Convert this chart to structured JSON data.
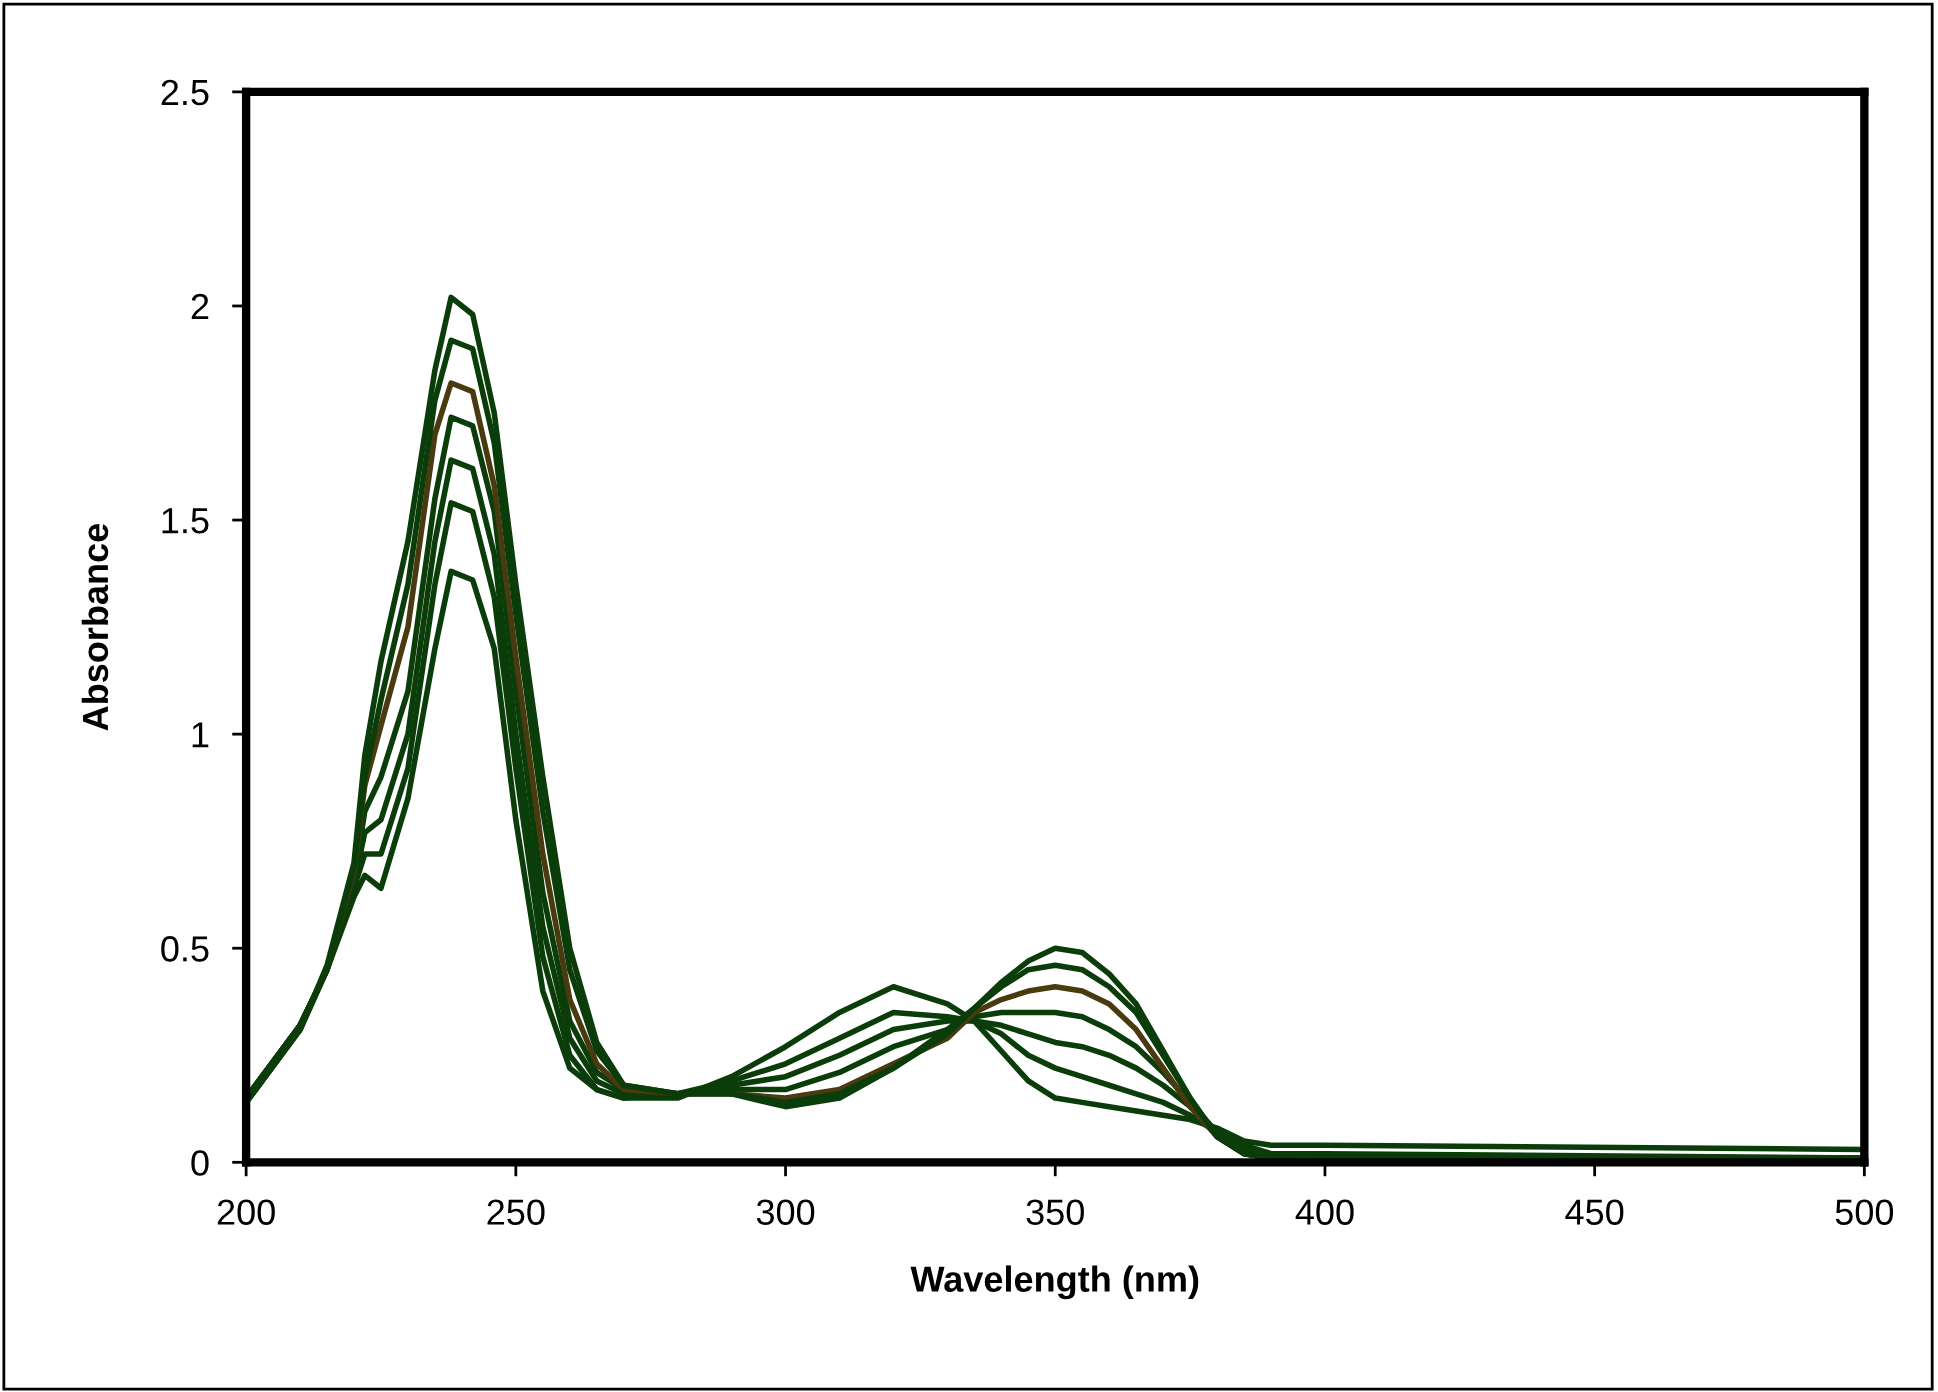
{
  "chart_data": {
    "type": "line",
    "xlabel": "Wavelength (nm)",
    "ylabel": "Absorbance",
    "x": [
      200,
      210,
      215,
      220,
      222,
      225,
      230,
      235,
      238,
      242,
      246,
      250,
      255,
      260,
      265,
      270,
      280,
      290,
      300,
      310,
      320,
      330,
      335,
      340,
      345,
      350,
      355,
      360,
      365,
      370,
      375,
      380,
      385,
      390,
      400,
      500
    ],
    "series": [
      {
        "color": "#0b3d0b",
        "values": [
          0.15,
          0.32,
          0.45,
          0.62,
          0.67,
          0.64,
          0.85,
          1.2,
          1.38,
          1.36,
          1.2,
          0.8,
          0.4,
          0.22,
          0.17,
          0.15,
          0.15,
          0.2,
          0.27,
          0.35,
          0.41,
          0.37,
          0.33,
          0.26,
          0.19,
          0.15,
          0.14,
          0.13,
          0.12,
          0.11,
          0.1,
          0.08,
          0.05,
          0.04,
          0.04,
          0.03
        ]
      },
      {
        "color": "#0b3d0b",
        "values": [
          0.15,
          0.32,
          0.45,
          0.64,
          0.72,
          0.72,
          0.92,
          1.35,
          1.54,
          1.52,
          1.32,
          0.92,
          0.48,
          0.25,
          0.17,
          0.15,
          0.16,
          0.19,
          0.23,
          0.29,
          0.35,
          0.34,
          0.33,
          0.3,
          0.25,
          0.22,
          0.2,
          0.18,
          0.16,
          0.14,
          0.11,
          0.07,
          0.04,
          0.02,
          0.02,
          0.01
        ]
      },
      {
        "color": "#0b3d0b",
        "values": [
          0.15,
          0.32,
          0.45,
          0.65,
          0.77,
          0.8,
          1.0,
          1.45,
          1.64,
          1.62,
          1.42,
          1.0,
          0.55,
          0.29,
          0.19,
          0.16,
          0.16,
          0.18,
          0.2,
          0.25,
          0.31,
          0.33,
          0.33,
          0.32,
          0.3,
          0.28,
          0.27,
          0.25,
          0.22,
          0.18,
          0.13,
          0.07,
          0.03,
          0.02,
          0.01,
          0.01
        ]
      },
      {
        "color": "#0b3d0b",
        "values": [
          0.15,
          0.32,
          0.45,
          0.66,
          0.82,
          0.9,
          1.1,
          1.55,
          1.74,
          1.72,
          1.52,
          1.1,
          0.63,
          0.33,
          0.21,
          0.17,
          0.16,
          0.17,
          0.17,
          0.21,
          0.27,
          0.31,
          0.34,
          0.35,
          0.35,
          0.35,
          0.34,
          0.31,
          0.27,
          0.21,
          0.14,
          0.07,
          0.03,
          0.01,
          0.01,
          0.01
        ]
      },
      {
        "color": "#4a3a10",
        "values": [
          0.14,
          0.31,
          0.45,
          0.68,
          0.88,
          1.02,
          1.25,
          1.7,
          1.82,
          1.8,
          1.58,
          1.18,
          0.72,
          0.38,
          0.23,
          0.17,
          0.16,
          0.16,
          0.15,
          0.17,
          0.23,
          0.29,
          0.35,
          0.38,
          0.4,
          0.41,
          0.4,
          0.37,
          0.31,
          0.22,
          0.13,
          0.06,
          0.02,
          0.01,
          0.01,
          0.01
        ]
      },
      {
        "color": "#0b3d0b",
        "values": [
          0.14,
          0.31,
          0.45,
          0.69,
          0.9,
          1.08,
          1.35,
          1.78,
          1.92,
          1.9,
          1.68,
          1.28,
          0.82,
          0.45,
          0.26,
          0.18,
          0.16,
          0.16,
          0.14,
          0.16,
          0.22,
          0.3,
          0.36,
          0.41,
          0.45,
          0.46,
          0.45,
          0.41,
          0.35,
          0.25,
          0.15,
          0.06,
          0.02,
          0.01,
          0.01,
          0.01
        ]
      },
      {
        "color": "#0b3d0b",
        "values": [
          0.14,
          0.31,
          0.46,
          0.7,
          0.95,
          1.17,
          1.45,
          1.85,
          2.02,
          1.98,
          1.75,
          1.35,
          0.9,
          0.5,
          0.28,
          0.18,
          0.16,
          0.16,
          0.13,
          0.15,
          0.22,
          0.31,
          0.36,
          0.42,
          0.47,
          0.5,
          0.49,
          0.44,
          0.37,
          0.26,
          0.15,
          0.06,
          0.02,
          0.01,
          0.01,
          0.01
        ]
      }
    ],
    "xlim": [
      200,
      500
    ],
    "xticks": [
      200,
      250,
      300,
      350,
      400,
      450,
      500
    ],
    "ylim": [
      0,
      2.5
    ],
    "yticks": [
      0,
      0.5,
      1,
      1.5,
      2,
      2.5
    ],
    "grid": false,
    "legend": false,
    "marker": "none",
    "line_style": "solid"
  }
}
